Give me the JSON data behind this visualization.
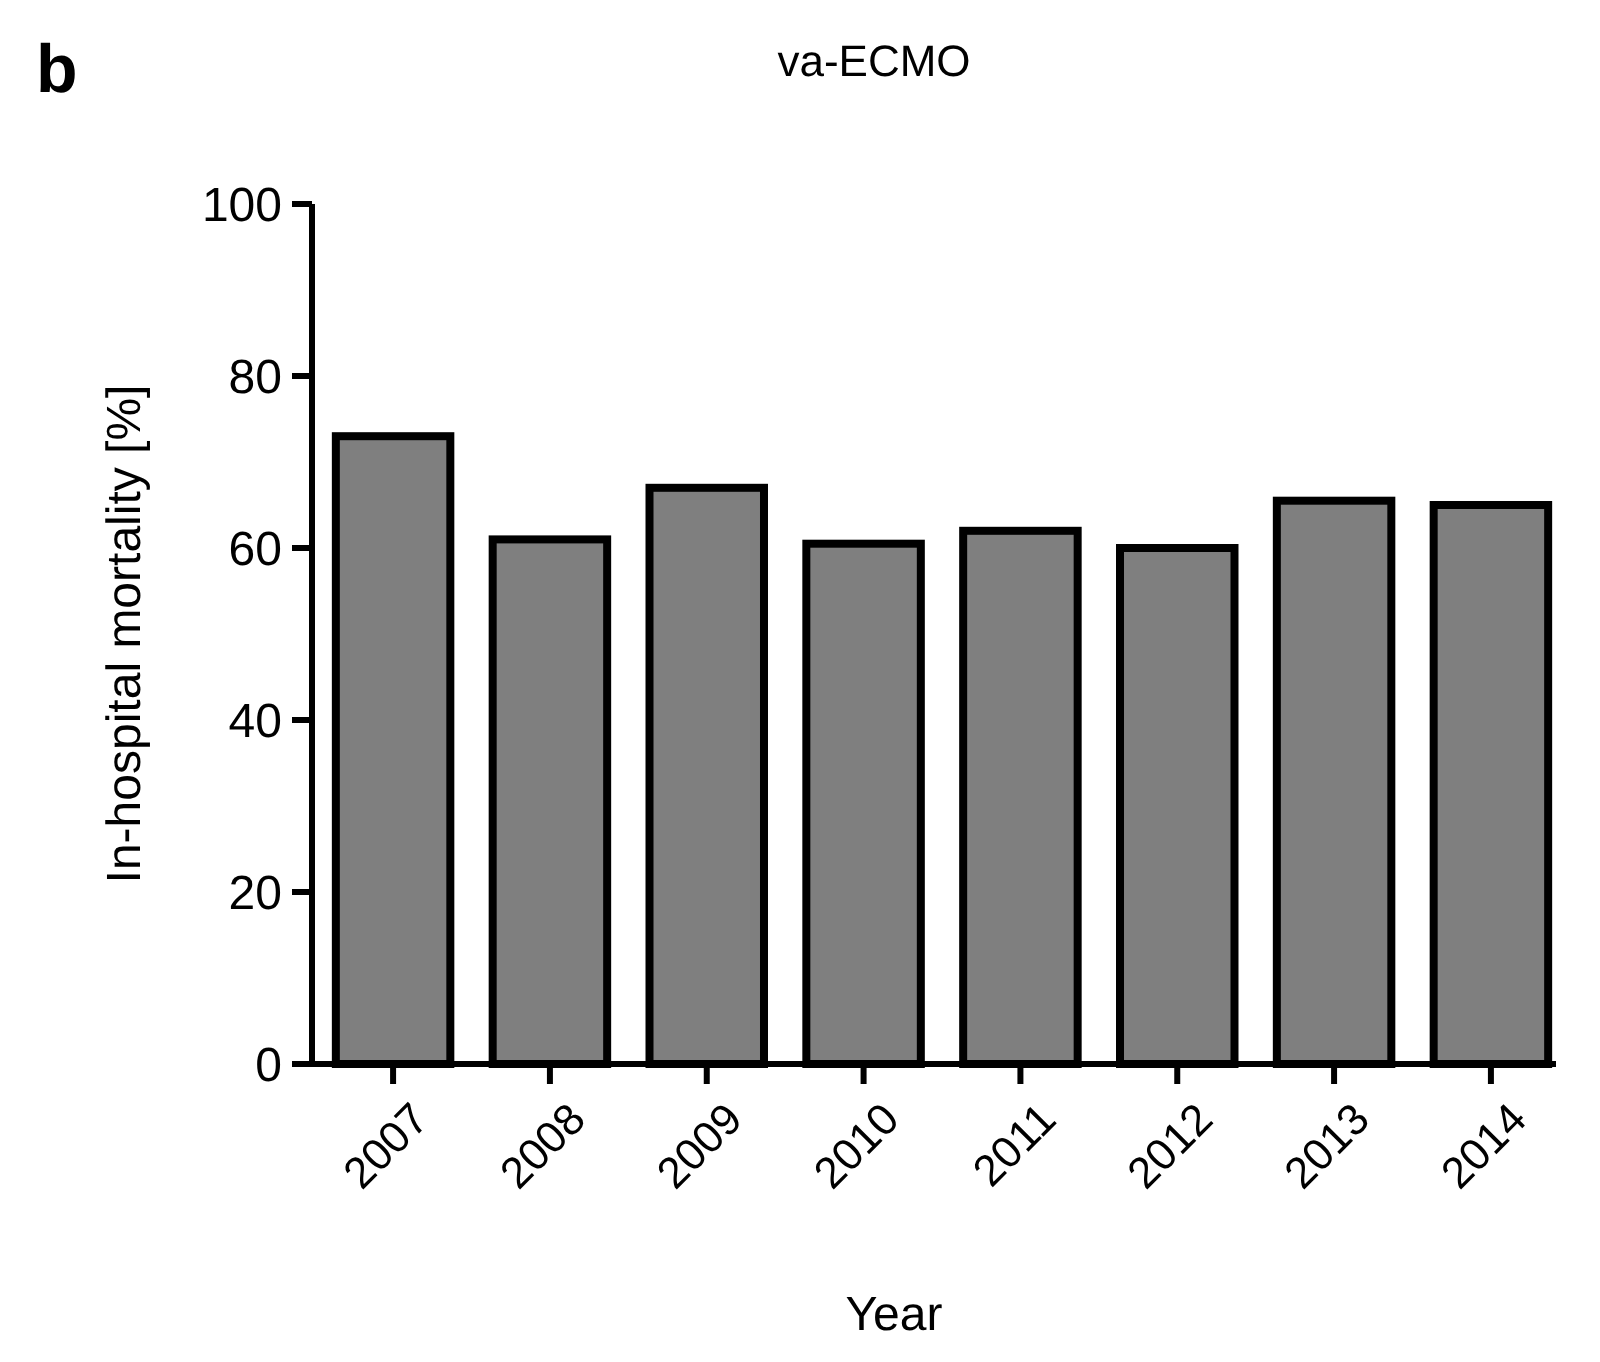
{
  "chart_data": {
    "type": "bar",
    "title": "va-ECMO",
    "xlabel": "Year",
    "ylabel": "In-hospital mortality [%]",
    "annotations": [
      "b"
    ],
    "categories": [
      "2007",
      "2008",
      "2009",
      "2010",
      "2011",
      "2012",
      "2013",
      "2014"
    ],
    "values": [
      73,
      61,
      67,
      60.5,
      62,
      60,
      65.5,
      65
    ],
    "color": "#7f7f7f",
    "ylim": [
      0,
      100
    ],
    "yticks": [
      0,
      20,
      40,
      60,
      80,
      100
    ],
    "grid": false
  }
}
